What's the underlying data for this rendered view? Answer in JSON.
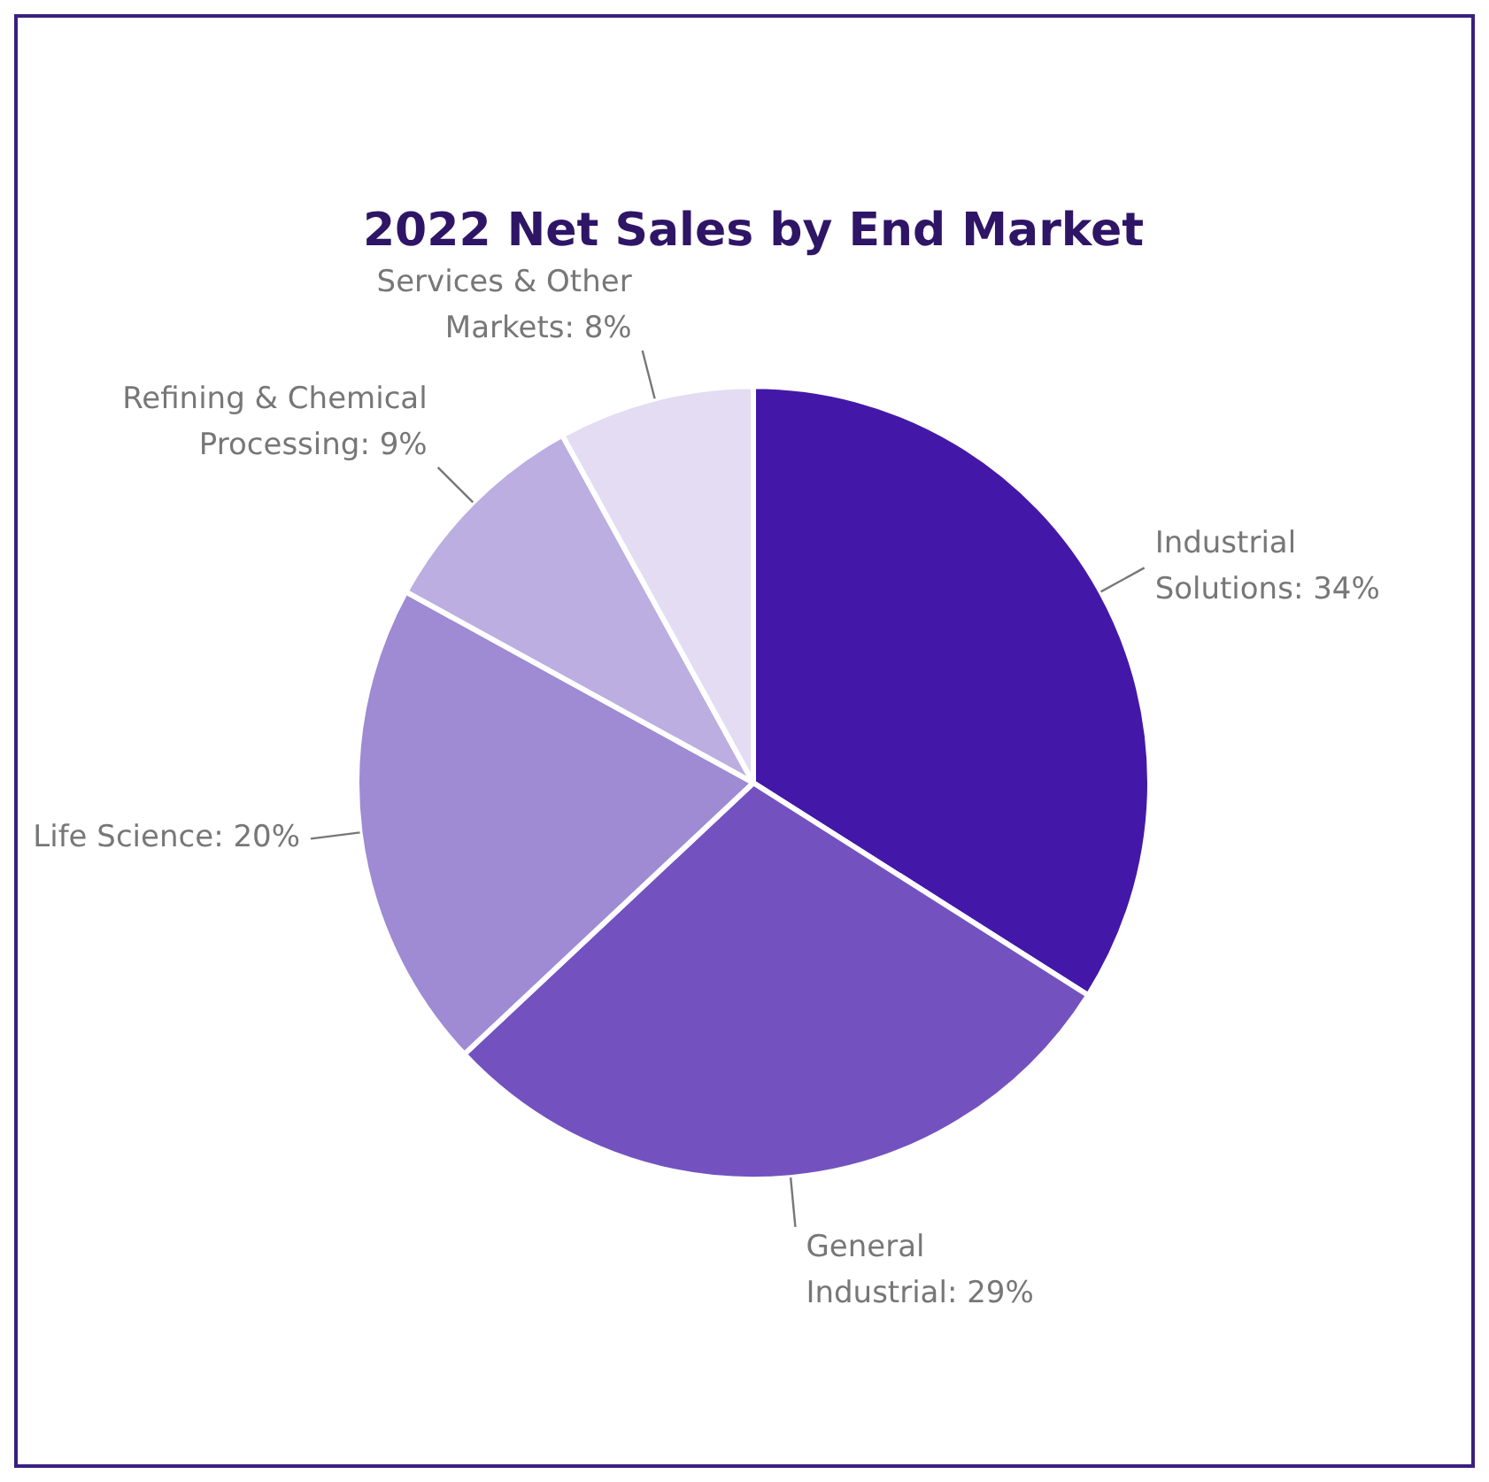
{
  "chart_data": {
    "type": "pie",
    "title": "2022 Net Sales by End Market",
    "categories": [
      "Industrial Solutions",
      "General Industrial",
      "Life Science",
      "Refining & Chemical Processing",
      "Services & Other Markets"
    ],
    "values": [
      34,
      29,
      20,
      9,
      8
    ],
    "value_labels": [
      "34%",
      "29%",
      "20%",
      "9%",
      "8%"
    ],
    "colors": [
      "#4318a8",
      "#7352c0",
      "#9f8ad4",
      "#bcaee0",
      "#e3dcf3"
    ],
    "legend": false
  }
}
